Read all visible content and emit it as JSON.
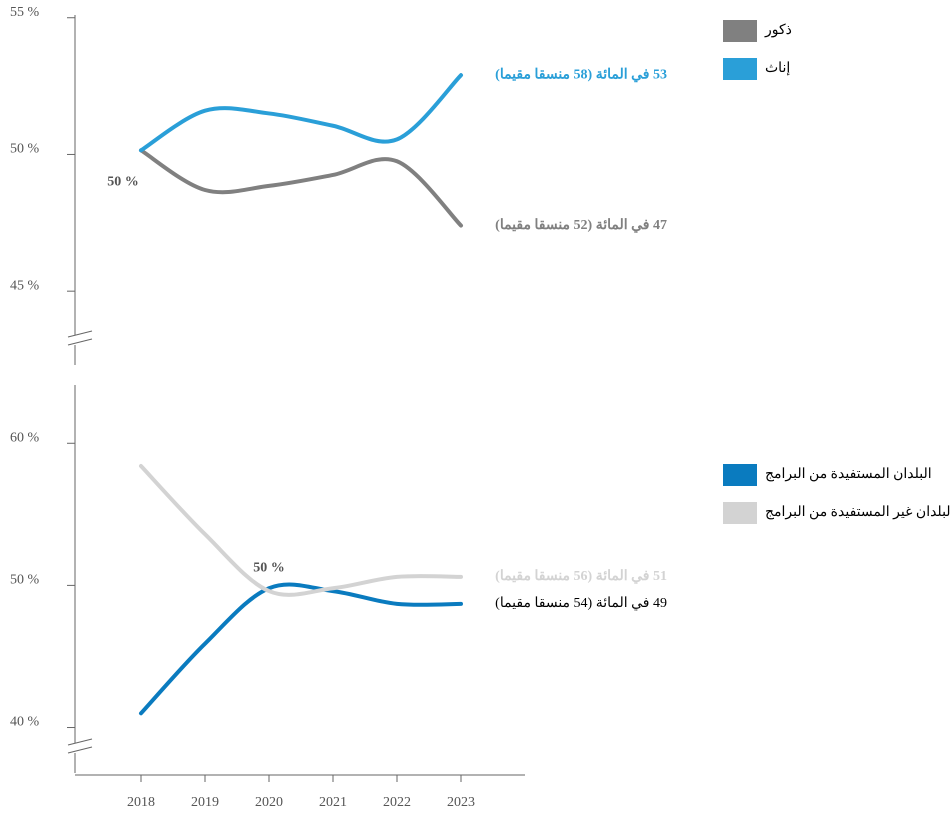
{
  "chart_data": [
    {
      "type": "line",
      "x": [
        2018,
        2019,
        2020,
        2021,
        2022,
        2023
      ],
      "xlim": [
        2017,
        2024
      ],
      "ylim": [
        42.3,
        55.1
      ],
      "yticks": [
        {
          "value": 45,
          "label": "45 %"
        },
        {
          "value": 50,
          "label": "50 %"
        },
        {
          "value": 55,
          "label": "55 %"
        }
      ],
      "series": [
        {
          "name": "ذكور",
          "color": "#808080",
          "values": [
            50.15,
            48.7,
            48.85,
            49.25,
            49.75,
            47.4
          ],
          "end_label": "47 في المائة (52 منسقا مقيما)"
        },
        {
          "name": "إناث",
          "color": "#2a9fd8",
          "values": [
            50.15,
            51.6,
            51.5,
            51.05,
            50.55,
            52.9
          ],
          "end_label": "53 في المائة (58 منسقا مقيما)"
        }
      ],
      "annotations": [
        "50 %"
      ]
    },
    {
      "type": "line",
      "x": [
        2018,
        2019,
        2020,
        2021,
        2022,
        2023
      ],
      "xlim": [
        2017,
        2024
      ],
      "xticks": [
        2018,
        2019,
        2020,
        2021,
        2022,
        2023
      ],
      "ylim": [
        36.8,
        64.1
      ],
      "yticks": [
        {
          "value": 40,
          "label": "40 %"
        },
        {
          "value": 50,
          "label": "50 %"
        },
        {
          "value": 60,
          "label": "60 %"
        }
      ],
      "series": [
        {
          "name": "البلدان المستفيدة من البرامج",
          "color": "#0a7bbf",
          "values": [
            41.0,
            45.9,
            49.8,
            49.6,
            48.7,
            48.7
          ],
          "end_label": "49 في المائة (54 منسقا مقيما)",
          "end_label_color": "#000000"
        },
        {
          "name": "البلدان غير المستفيدة من البرامج",
          "color": "#d3d3d3",
          "values": [
            58.4,
            53.6,
            49.6,
            49.8,
            50.6,
            50.6
          ],
          "end_label": "51 في المائة (56 منسقا مقيما)"
        }
      ],
      "annotations": [
        "50 %"
      ]
    }
  ]
}
